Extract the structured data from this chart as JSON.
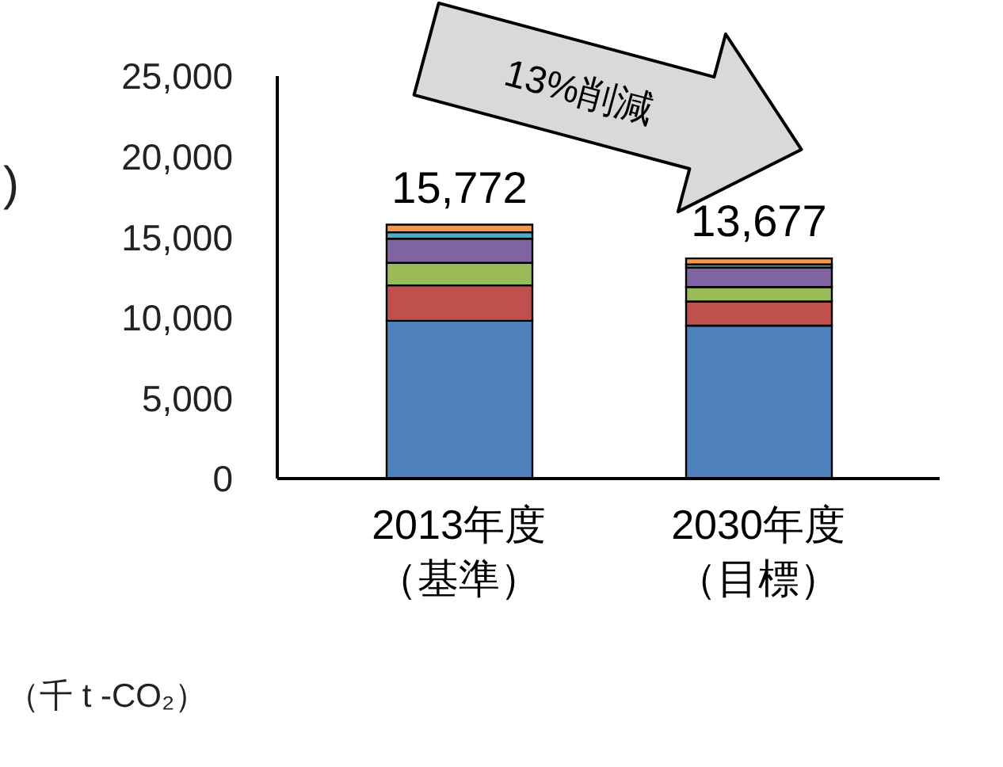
{
  "chart_data": {
    "type": "bar",
    "stacked": true,
    "ylabel": "（千 t -CO₂）",
    "categories": [
      "2013年度（基準）",
      "2030年度（目標）"
    ],
    "series": [
      {
        "color": "#4f81bd",
        "values": [
          9800,
          9500
        ]
      },
      {
        "color": "#c0504d",
        "values": [
          2200,
          1500
        ]
      },
      {
        "color": "#9bbb59",
        "values": [
          1400,
          900
        ]
      },
      {
        "color": "#8064a2",
        "values": [
          1500,
          1200
        ]
      },
      {
        "color": "#4bacc6",
        "values": [
          400,
          200
        ]
      },
      {
        "color": "#f79646",
        "values": [
          472,
          377
        ]
      }
    ],
    "totals": [
      "15,772",
      "13,677"
    ],
    "ylim": [
      0,
      25000
    ],
    "yticks": [
      {
        "value": 0,
        "label": "0"
      },
      {
        "value": 5000,
        "label": "5,000"
      },
      {
        "value": 10000,
        "label": "10,000"
      },
      {
        "value": 15000,
        "label": "15,000"
      },
      {
        "value": 20000,
        "label": "20,000"
      },
      {
        "value": 25000,
        "label": "25,000"
      }
    ],
    "grid": false,
    "annotations": [
      "13%削減",
      ")"
    ]
  }
}
